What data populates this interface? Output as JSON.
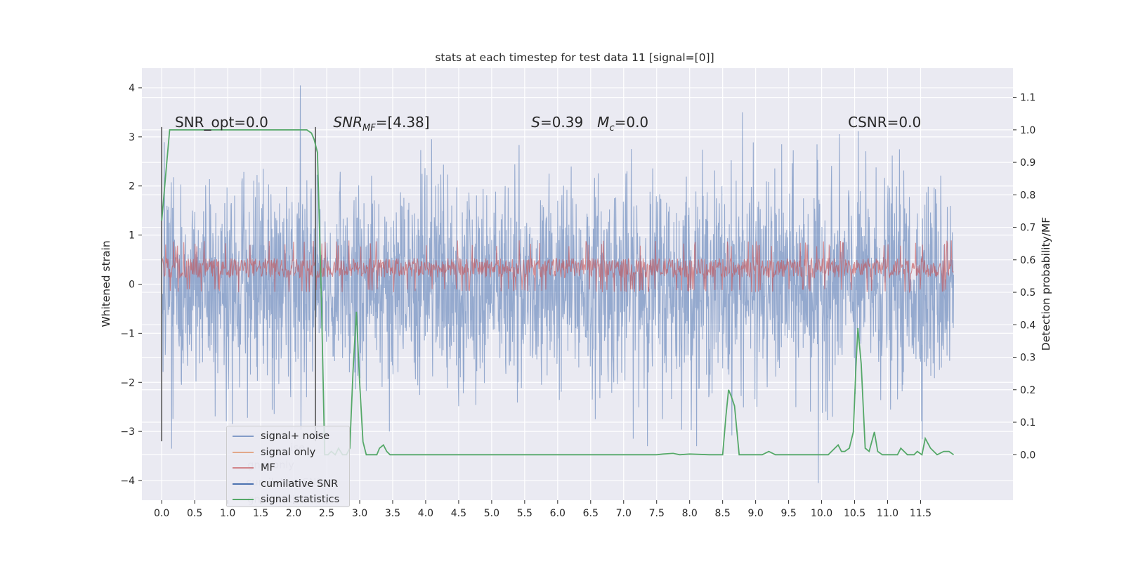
{
  "chart_data": {
    "type": "line",
    "title": "stats at each timestep for test data 11 [signal=[0]]",
    "ylabel": "Whitened strain",
    "ylabel_right": "Detection probability/MF",
    "xlim": [
      -0.3,
      12.9
    ],
    "ylim": [
      -4.4,
      4.4
    ],
    "ylim_right": [
      -0.14,
      1.19
    ],
    "x_ticks": [
      0.0,
      0.5,
      1.0,
      1.5,
      2.0,
      2.5,
      3.0,
      3.5,
      4.0,
      4.5,
      5.0,
      5.5,
      6.0,
      6.5,
      7.0,
      7.5,
      8.0,
      8.5,
      9.0,
      9.5,
      10.0,
      10.5,
      11.0,
      11.5
    ],
    "x_tick_labels": [
      "0.0",
      "0.5",
      "1.0",
      "1.5",
      "2.0",
      "2.5",
      "3.0",
      "3.5",
      "4.0",
      "4.5",
      "5.0",
      "5.5",
      "6.0",
      "6.5",
      "7.0",
      "7.5",
      "8.0",
      "8.5",
      "9.0",
      "9.5",
      "10.0",
      "10.5",
      "11.0",
      "11.5"
    ],
    "y_ticks": [
      -4,
      -3,
      -2,
      -1,
      0,
      1,
      2,
      3,
      4
    ],
    "y_tick_labels": [
      "−4",
      "−3",
      "−2",
      "−1",
      "0",
      "1",
      "2",
      "3",
      "4"
    ],
    "y_ticks_right": [
      0.0,
      0.1,
      0.2,
      0.3,
      0.4,
      0.5,
      0.6,
      0.7,
      0.8,
      0.9,
      1.0,
      1.1
    ],
    "y_tick_labels_right": [
      "0.0",
      "0.1",
      "0.2",
      "0.3",
      "0.4",
      "0.5",
      "0.6",
      "0.7",
      "0.8",
      "0.9",
      "1.0",
      "1.1"
    ],
    "grid": true,
    "annotations": [
      {
        "text": "SNR_opt=0.0",
        "x": 0.2,
        "y": 3.2
      },
      {
        "text": "SNR_MF=[4.38]",
        "x": 2.6,
        "y": 3.2
      },
      {
        "text": "S=0.39",
        "x": 5.6,
        "y": 3.2
      },
      {
        "text": "M_c=0.0",
        "x": 6.6,
        "y": 3.2
      },
      {
        "text": "CSNR=0.0",
        "x": 10.4,
        "y": 3.2
      }
    ],
    "vertical_lines": [
      {
        "x": 0.0,
        "y_from": -3.2,
        "y_to": 3.2
      },
      {
        "x": 2.33,
        "y_from": -3.2,
        "y_to": 3.2
      }
    ],
    "series": [
      {
        "name": "signal+ noise",
        "axis": "left",
        "color": "#4c72b0",
        "x_range": [
          0.0,
          12.0
        ],
        "approx_range": [
          -4.05,
          4.05
        ],
        "notable_extremes": [
          [
            2.1,
            4.05
          ],
          [
            9.95,
            -4.05
          ],
          [
            0.15,
            -3.35
          ],
          [
            3.45,
            -3.0
          ],
          [
            8.8,
            3.5
          ]
        ]
      },
      {
        "name": "signal only",
        "axis": "left",
        "color": "#dd8452",
        "values_all_zero": true
      },
      {
        "name": "MF",
        "axis": "right",
        "color": "#c44e52",
        "x_range": [
          0.0,
          12.0
        ],
        "approx_range": [
          0.5,
          0.66
        ]
      },
      {
        "name": "cumilative SNR",
        "axis": "left",
        "color": "#4c72b0",
        "values_all_zero": true
      },
      {
        "name": "signal statistics",
        "axis": "right",
        "color": "#55a868",
        "x": [
          0.0,
          0.06,
          0.12,
          0.25,
          0.5,
          1.0,
          1.5,
          2.0,
          2.2,
          2.27,
          2.31,
          2.36,
          2.42,
          2.47,
          2.52,
          2.57,
          2.63,
          2.68,
          2.74,
          2.8,
          2.85,
          2.9,
          2.95,
          3.0,
          3.05,
          3.1,
          3.15,
          3.21,
          3.26,
          3.3,
          3.36,
          3.41,
          3.46,
          3.52,
          3.6,
          4.0,
          5.0,
          6.0,
          7.0,
          7.5,
          7.6,
          7.75,
          7.85,
          8.0,
          8.3,
          8.5,
          8.55,
          8.59,
          8.63,
          8.68,
          8.75,
          8.8,
          8.9,
          9.0,
          9.1,
          9.2,
          9.3,
          9.5,
          9.8,
          10.0,
          10.1,
          10.15,
          10.25,
          10.3,
          10.35,
          10.42,
          10.48,
          10.52,
          10.55,
          10.6,
          10.66,
          10.72,
          10.8,
          10.85,
          10.92,
          11.0,
          11.1,
          11.15,
          11.2,
          11.3,
          11.4,
          11.45,
          11.52,
          11.57,
          11.65,
          11.75,
          11.85,
          11.93,
          12.0
        ],
        "y": [
          0.72,
          0.86,
          1.0,
          1.0,
          1.0,
          1.0,
          1.0,
          1.0,
          1.0,
          0.99,
          0.97,
          0.93,
          0.48,
          0.0,
          0.0,
          0.01,
          0.0,
          0.02,
          0.0,
          0.0,
          0.02,
          0.26,
          0.44,
          0.22,
          0.04,
          0.0,
          0.0,
          0.0,
          0.0,
          0.02,
          0.03,
          0.01,
          0.0,
          0.0,
          0.0,
          0.0,
          0.0,
          0.0,
          0.0,
          0.0,
          0.002,
          0.004,
          0.0,
          0.002,
          0.0,
          0.0,
          0.12,
          0.2,
          0.18,
          0.15,
          0.0,
          0.0,
          0.0,
          0.0,
          0.0,
          0.01,
          0.0,
          0.0,
          0.0,
          0.0,
          0.0,
          0.01,
          0.03,
          0.01,
          0.01,
          0.02,
          0.07,
          0.27,
          0.39,
          0.28,
          0.02,
          0.01,
          0.07,
          0.01,
          0.0,
          0.0,
          0.0,
          0.0,
          0.02,
          0.0,
          0.0,
          0.01,
          0.0,
          0.05,
          0.02,
          0.0,
          0.01,
          0.01,
          0.0
        ]
      }
    ],
    "legend": {
      "placement": "lower-left",
      "entries": [
        {
          "label": "signal+ noise",
          "color": "#4c72b0"
        },
        {
          "label": "signal only",
          "color": "#dd8452"
        },
        {
          "label": "MF",
          "color": "#c44e52"
        },
        {
          "label": "cumilative SNR",
          "color": "#4c72b0"
        },
        {
          "label": "signal statistics",
          "color": "#55a868"
        }
      ]
    },
    "ghost_legend_text": [
      {
        "text": "ise",
        "x": 1.95,
        "y": -3.4
      },
      {
        "text": "gnal only",
        "x": 1.3,
        "y": -3.75
      },
      {
        "text": "cumilative SNR",
        "x": 1.28,
        "y": -4.1
      },
      {
        "text": "gnal statistics",
        "x": 1.3,
        "y": -4.45
      }
    ]
  }
}
